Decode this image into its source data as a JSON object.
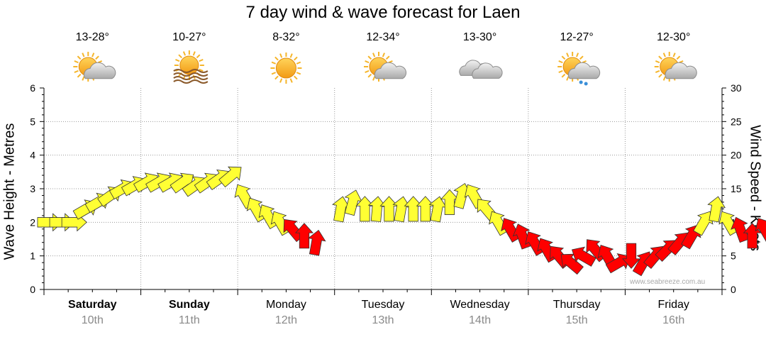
{
  "chart_data": {
    "type": "arrow-series",
    "title": "7 day wind & wave forecast for Laen",
    "ylabel_left": "Wave Height - Metres",
    "ylabel_right": "Wind Speed - Knots",
    "ylim_left": [
      0,
      6
    ],
    "ylim_right": [
      0,
      30
    ],
    "yticks_left": [
      "0",
      "1",
      "2",
      "3",
      "4",
      "5",
      "6"
    ],
    "yticks_right": [
      "0",
      "5",
      "10",
      "15",
      "20",
      "25",
      "30"
    ],
    "watermark": "www.seabreeze.com.au",
    "days": [
      {
        "name": "Saturday",
        "date": "10th",
        "temp": "13-28°",
        "icon": "sun-cloud-icon",
        "bold": true
      },
      {
        "name": "Sunday",
        "date": "11th",
        "temp": "10-27°",
        "icon": "sun-haze-icon",
        "bold": true
      },
      {
        "name": "Monday",
        "date": "12th",
        "temp": "8-32°",
        "icon": "sun-icon",
        "bold": false
      },
      {
        "name": "Tuesday",
        "date": "13th",
        "temp": "12-34°",
        "icon": "sun-cloud-icon",
        "bold": false
      },
      {
        "name": "Wednesday",
        "date": "14th",
        "temp": "13-30°",
        "icon": "cloud-icon",
        "bold": false
      },
      {
        "name": "Thursday",
        "date": "15th",
        "temp": "12-27°",
        "icon": "sun-cloud-rain-icon",
        "bold": false
      },
      {
        "name": "Friday",
        "date": "16th",
        "temp": "12-30°",
        "icon": "sun-cloud-icon",
        "bold": false
      }
    ],
    "colors": {
      "light_wind": "#ffff33",
      "strong_wind": "#ff0000",
      "outline": "#333333",
      "grid": "#999999"
    },
    "wind_threshold_knots": 10,
    "arrow_series_note": "x = hours since Saturday 00:00; wind in knots; dir = compass bearing the arrow points toward",
    "arrows": [
      {
        "x": 0,
        "wind": 10,
        "dir": 90
      },
      {
        "x": 3,
        "wind": 10,
        "dir": 90
      },
      {
        "x": 6,
        "wind": 10,
        "dir": 90
      },
      {
        "x": 9,
        "wind": 12,
        "dir": 60
      },
      {
        "x": 12,
        "wind": 13,
        "dir": 60
      },
      {
        "x": 15,
        "wind": 14,
        "dir": 55
      },
      {
        "x": 18,
        "wind": 15,
        "dir": 60
      },
      {
        "x": 21,
        "wind": 15.5,
        "dir": 60
      },
      {
        "x": 24,
        "wind": 16,
        "dir": 60
      },
      {
        "x": 27,
        "wind": 16,
        "dir": 60
      },
      {
        "x": 30,
        "wind": 16,
        "dir": 60
      },
      {
        "x": 33,
        "wind": 16,
        "dir": 55
      },
      {
        "x": 36,
        "wind": 15.5,
        "dir": 55
      },
      {
        "x": 39,
        "wind": 16,
        "dir": 55
      },
      {
        "x": 42,
        "wind": 16.5,
        "dir": 55
      },
      {
        "x": 45,
        "wind": 17,
        "dir": 50
      },
      {
        "x": 48,
        "wind": 14,
        "dir": 330
      },
      {
        "x": 51,
        "wind": 12,
        "dir": 330
      },
      {
        "x": 54,
        "wind": 11,
        "dir": 330
      },
      {
        "x": 57,
        "wind": 10,
        "dir": 330
      },
      {
        "x": 60,
        "wind": 9,
        "dir": 320
      },
      {
        "x": 63,
        "wind": 8,
        "dir": 0
      },
      {
        "x": 66,
        "wind": 7,
        "dir": 10
      },
      {
        "x": 72,
        "wind": 12,
        "dir": 10
      },
      {
        "x": 75,
        "wind": 13,
        "dir": 15
      },
      {
        "x": 78,
        "wind": 12,
        "dir": 0
      },
      {
        "x": 81,
        "wind": 12,
        "dir": 5
      },
      {
        "x": 84,
        "wind": 12,
        "dir": 0
      },
      {
        "x": 87,
        "wind": 12,
        "dir": 10
      },
      {
        "x": 90,
        "wind": 12,
        "dir": 0
      },
      {
        "x": 93,
        "wind": 12,
        "dir": 0
      },
      {
        "x": 96,
        "wind": 12,
        "dir": 10
      },
      {
        "x": 99,
        "wind": 13,
        "dir": 0
      },
      {
        "x": 102,
        "wind": 14,
        "dir": 15
      },
      {
        "x": 105,
        "wind": 14,
        "dir": 330
      },
      {
        "x": 108,
        "wind": 12,
        "dir": 320
      },
      {
        "x": 111,
        "wind": 10,
        "dir": 330
      },
      {
        "x": 114,
        "wind": 9,
        "dir": 330
      },
      {
        "x": 117,
        "wind": 8,
        "dir": 340
      },
      {
        "x": 120,
        "wind": 7,
        "dir": 330
      },
      {
        "x": 123,
        "wind": 6,
        "dir": 330
      },
      {
        "x": 126,
        "wind": 5,
        "dir": 320
      },
      {
        "x": 129,
        "wind": 4,
        "dir": 310
      },
      {
        "x": 132,
        "wind": 5,
        "dir": 300
      },
      {
        "x": 135,
        "wind": 6,
        "dir": 320
      },
      {
        "x": 138,
        "wind": 5,
        "dir": 330
      },
      {
        "x": 141,
        "wind": 4,
        "dir": 60
      },
      {
        "x": 144,
        "wind": 5,
        "dir": 180
      },
      {
        "x": 147,
        "wind": 4,
        "dir": 30
      },
      {
        "x": 150,
        "wind": 5,
        "dir": 40
      },
      {
        "x": 153,
        "wind": 6,
        "dir": 45
      },
      {
        "x": 156,
        "wind": 7,
        "dir": 40
      },
      {
        "x": 159,
        "wind": 8,
        "dir": 30
      },
      {
        "x": 162,
        "wind": 10,
        "dir": 30
      },
      {
        "x": 165,
        "wind": 12,
        "dir": 10
      },
      {
        "x": 168,
        "wind": 10,
        "dir": 330
      },
      {
        "x": 171,
        "wind": 9,
        "dir": 340
      },
      {
        "x": 174,
        "wind": 8,
        "dir": 0
      },
      {
        "x": 177,
        "wind": 9,
        "dir": 330
      },
      {
        "x": 180,
        "wind": 8,
        "dir": 180
      },
      {
        "x": 183,
        "wind": 8,
        "dir": 0
      },
      {
        "x": 186,
        "wind": 7,
        "dir": 0
      },
      {
        "x": 189,
        "wind": 8,
        "dir": 180
      },
      {
        "x": 192,
        "wind": 8,
        "dir": 45
      },
      {
        "x": 195,
        "wind": 7,
        "dir": 45
      },
      {
        "x": 198,
        "wind": 6,
        "dir": 45
      },
      {
        "x": 201,
        "wind": 6,
        "dir": 45
      },
      {
        "x": 204,
        "wind": 7,
        "dir": 45
      },
      {
        "x": 207,
        "wind": 8,
        "dir": 45
      },
      {
        "x": 210,
        "wind": 8,
        "dir": 40
      },
      {
        "x": 213,
        "wind": 9,
        "dir": 30
      },
      {
        "x": 216,
        "wind": 10,
        "dir": 0
      },
      {
        "x": 219,
        "wind": 10,
        "dir": 0
      },
      {
        "x": 222,
        "wind": 9,
        "dir": 330
      },
      {
        "x": 225,
        "wind": 9,
        "dir": 330
      },
      {
        "x": 228,
        "wind": 8,
        "dir": 0
      },
      {
        "x": 231,
        "wind": 9,
        "dir": 0
      },
      {
        "x": 234,
        "wind": 10,
        "dir": 0
      },
      {
        "x": 237,
        "wind": 10,
        "dir": 10
      },
      {
        "x": 240,
        "wind": 11,
        "dir": 20
      },
      {
        "x": 243,
        "wind": 12,
        "dir": 30
      },
      {
        "x": 246,
        "wind": 14,
        "dir": 30
      },
      {
        "x": 249,
        "wind": 16,
        "dir": 20
      },
      {
        "x": 252,
        "wind": 17,
        "dir": 10
      },
      {
        "x": 255,
        "wind": 17,
        "dir": 0
      },
      {
        "x": 258,
        "wind": 16,
        "dir": 330
      },
      {
        "x": 261,
        "wind": 14,
        "dir": 330
      },
      {
        "x": 264,
        "wind": 12,
        "dir": 340
      },
      {
        "x": 267,
        "wind": 11,
        "dir": 0
      },
      {
        "x": 270,
        "wind": 10,
        "dir": 0
      },
      {
        "x": 273,
        "wind": 10,
        "dir": 0
      },
      {
        "x": 276,
        "wind": 10,
        "dir": 0
      },
      {
        "x": 279,
        "wind": 11,
        "dir": 0
      },
      {
        "x": 282,
        "wind": 13,
        "dir": 0
      },
      {
        "x": 285,
        "wind": 13,
        "dir": 10
      },
      {
        "x": 288,
        "wind": 13,
        "dir": 0
      },
      {
        "x": 291,
        "wind": 14,
        "dir": 10
      },
      {
        "x": 294,
        "wind": 15,
        "dir": 0
      },
      {
        "x": 297,
        "wind": 15,
        "dir": 0
      },
      {
        "x": 300,
        "wind": 15,
        "dir": 0
      },
      {
        "x": 303,
        "wind": 16,
        "dir": 0
      },
      {
        "x": 306,
        "wind": 15,
        "dir": 0
      },
      {
        "x": 309,
        "wind": 16,
        "dir": 10
      },
      {
        "x": 312,
        "wind": 15,
        "dir": 330
      },
      {
        "x": 315,
        "wind": 13,
        "dir": 330
      },
      {
        "x": 318,
        "wind": 12,
        "dir": 0
      },
      {
        "x": 321,
        "wind": 11,
        "dir": 0
      },
      {
        "x": 324,
        "wind": 10,
        "dir": 0
      },
      {
        "x": 327,
        "wind": 9,
        "dir": 0
      },
      {
        "x": 330,
        "wind": 9,
        "dir": 0
      },
      {
        "x": 333,
        "wind": 10,
        "dir": 0
      },
      {
        "x": 336,
        "wind": 11,
        "dir": 0
      },
      {
        "x": 339,
        "wind": 12,
        "dir": 30
      },
      {
        "x": 342,
        "wind": 13,
        "dir": 0
      },
      {
        "x": 345,
        "wind": 12,
        "dir": 10
      },
      {
        "x": 348,
        "wind": 12,
        "dir": 10
      },
      {
        "x": 351,
        "wind": 13,
        "dir": 0
      },
      {
        "x": 354,
        "wind": 13,
        "dir": 330
      },
      {
        "x": 357,
        "wind": 14,
        "dir": 0
      },
      {
        "x": 360,
        "wind": 14,
        "dir": 340
      },
      {
        "x": 363,
        "wind": 14,
        "dir": 330
      },
      {
        "x": 366,
        "wind": 13,
        "dir": 330
      }
    ]
  }
}
